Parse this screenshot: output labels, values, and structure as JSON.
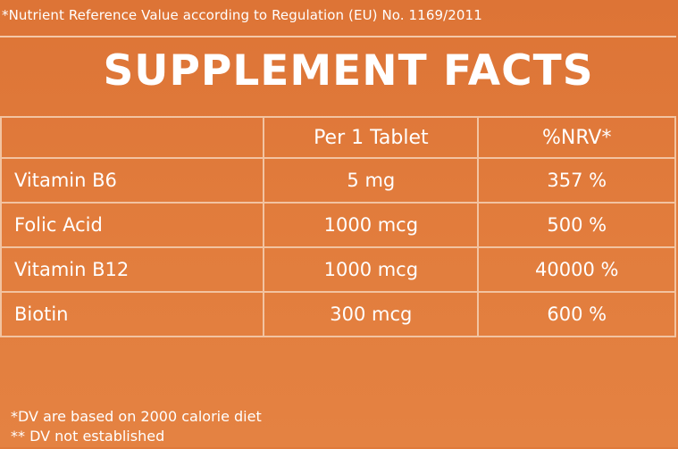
{
  "top_note": "*Nutrient Reference Value according to Regulation (EU) No. 1169/2011",
  "title": "SUPPLEMENT FACTS",
  "table": {
    "headers": [
      "",
      "Per 1 Tablet",
      "%NRV*"
    ],
    "rows": [
      {
        "name": "Vitamin B6",
        "amount": "5 mg",
        "nrv": "357 %"
      },
      {
        "name": "Folic Acid",
        "amount": "1000 mcg",
        "nrv": "500 %"
      },
      {
        "name": "Vitamin B12",
        "amount": "1000 mcg",
        "nrv": "40000 %"
      },
      {
        "name": "Biotin",
        "amount": "300 mcg",
        "nrv": "600 %"
      }
    ]
  },
  "footer": {
    "line1": "*DV are based on 2000 calorie diet",
    "line2": "** DV not established"
  },
  "colors": {
    "background": "#e07a3a",
    "text": "#ffffff",
    "grid": "#f2c3a1"
  }
}
